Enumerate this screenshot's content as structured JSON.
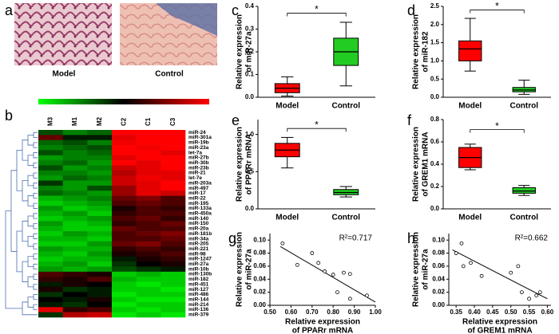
{
  "panel_a": {
    "label": "a",
    "images": [
      "Model",
      "Control"
    ]
  },
  "chart_data": [
    {
      "type": "heatmap",
      "panel": "b",
      "columns": [
        "M3",
        "M1",
        "M2",
        "C2",
        "C1",
        "C3"
      ],
      "rows": [
        "miR-24",
        "miR-301a",
        "miR-19b",
        "miR-23a",
        "let-7a",
        "miR-27b",
        "miR-30b",
        "miR-23b",
        "miR-21",
        "let-7e",
        "miR-203a",
        "miR-497",
        "miR-17",
        "miR-22",
        "miR-195",
        "miR-133a",
        "miR-450a",
        "miR-140",
        "miR-150",
        "miR-20a",
        "miR-181b",
        "miR-34a",
        "miR-205",
        "miR-221",
        "miR-98",
        "miR-1247",
        "miR-27a",
        "miR-10b",
        "miR-130b",
        "miR-182",
        "miR-451",
        "miR-127",
        "miR-486",
        "miR-144",
        "miR-214",
        "miR-136",
        "miR-379"
      ],
      "colors": [
        "#00ff00",
        "#000000",
        "#ff0000"
      ],
      "zlim": [
        -1,
        1
      ],
      "values": [
        [
          -0.3,
          -0.5,
          -0.4,
          1,
          1,
          1
        ],
        [
          0.4,
          -0.1,
          -0.1,
          0.9,
          1,
          1
        ],
        [
          -0.4,
          -0.3,
          -0.5,
          0.95,
          1,
          1
        ],
        [
          -0.5,
          -0.4,
          -0.3,
          1,
          0.95,
          1
        ],
        [
          -0.3,
          -0.5,
          -0.4,
          1,
          1,
          0.9
        ],
        [
          -0.6,
          -0.5,
          -0.5,
          0.9,
          1,
          1
        ],
        [
          -0.5,
          -0.4,
          -0.6,
          1,
          0.9,
          1
        ],
        [
          -0.3,
          -0.6,
          -0.5,
          0.8,
          0.9,
          1
        ],
        [
          -0.5,
          -0.5,
          -0.6,
          0.7,
          0.9,
          0.9
        ],
        [
          -0.6,
          -0.4,
          -0.5,
          0.8,
          0.95,
          0.9
        ],
        [
          -0.2,
          -0.6,
          -0.6,
          0.8,
          0.9,
          1
        ],
        [
          -0.5,
          -0.6,
          -0.3,
          0.6,
          0.9,
          1
        ],
        [
          -0.4,
          -0.5,
          -0.6,
          0.6,
          0.9,
          0.8
        ],
        [
          -0.7,
          -0.6,
          -0.5,
          0.4,
          0.5,
          0.3
        ],
        [
          -0.8,
          -0.7,
          -0.6,
          0.3,
          0.4,
          0.3
        ],
        [
          -0.6,
          -0.8,
          -0.7,
          0.1,
          0.3,
          0.2
        ],
        [
          -0.7,
          -0.6,
          -0.8,
          0.2,
          0.3,
          0.3
        ],
        [
          -0.8,
          -0.7,
          -0.6,
          0.3,
          0.4,
          0.2
        ],
        [
          -0.6,
          -0.8,
          -0.7,
          0.2,
          0.3,
          0.4
        ],
        [
          -0.7,
          -0.8,
          -0.8,
          0.4,
          0.3,
          0.3
        ],
        [
          -0.8,
          -0.6,
          -0.7,
          0.3,
          0.4,
          0.5
        ],
        [
          -0.7,
          -0.7,
          -0.8,
          0.3,
          0.3,
          0.4
        ],
        [
          -0.8,
          -0.8,
          -0.6,
          0.4,
          0.5,
          0.3
        ],
        [
          -0.6,
          -0.7,
          -0.7,
          0.2,
          0.3,
          0.2
        ],
        [
          -0.7,
          -0.8,
          -0.6,
          0.1,
          0.2,
          0.3
        ],
        [
          -0.8,
          -0.7,
          -0.7,
          -0.1,
          0.1,
          0.2
        ],
        [
          -0.7,
          -0.6,
          -0.8,
          -0.2,
          0.0,
          0.1
        ],
        [
          -0.6,
          -0.7,
          -0.6,
          -0.3,
          -0.2,
          -0.1
        ],
        [
          0.3,
          0.2,
          0.1,
          -0.8,
          -0.7,
          -0.8
        ],
        [
          0.2,
          0.1,
          0.3,
          -0.7,
          -0.8,
          -0.8
        ],
        [
          -0.1,
          0.1,
          0.0,
          -0.8,
          -0.9,
          -0.8
        ],
        [
          0.1,
          -0.2,
          -0.1,
          -0.8,
          -0.8,
          -0.9
        ],
        [
          -0.2,
          0.0,
          -0.1,
          -0.9,
          -0.8,
          -0.8
        ],
        [
          0.0,
          -0.1,
          0.1,
          -0.8,
          -0.9,
          -0.9
        ],
        [
          -0.1,
          -0.2,
          0.0,
          -0.9,
          -0.8,
          -0.8
        ],
        [
          0.9,
          0.2,
          0.3,
          -0.8,
          -0.9,
          -0.8
        ],
        [
          -0.2,
          0.7,
          0.8,
          -0.9,
          -0.8,
          -0.9
        ]
      ]
    },
    {
      "type": "box",
      "panel": "c",
      "ylabel": [
        "Relative expression",
        "of miR-27a"
      ],
      "categories": [
        "Model",
        "Control"
      ],
      "boxes": [
        {
          "color": "#ff0000",
          "min": 0.005,
          "q1": 0.02,
          "median": 0.04,
          "q3": 0.06,
          "max": 0.09
        },
        {
          "color": "#22cc22",
          "min": 0.05,
          "q1": 0.14,
          "median": 0.2,
          "q3": 0.26,
          "max": 0.33
        }
      ],
      "ylim": [
        0,
        0.4
      ],
      "yticks": [
        {
          "value": 0,
          "label": "0.0"
        },
        0.1,
        0.2,
        0.3,
        0.4
      ],
      "significance": {
        "label": "*",
        "y": 0.37
      }
    },
    {
      "type": "box",
      "panel": "d",
      "ylabel": [
        "Relative expression",
        "of miR-182"
      ],
      "categories": [
        "Model",
        "Control"
      ],
      "boxes": [
        {
          "color": "#ff0000",
          "min": 0.72,
          "q1": 1.0,
          "median": 1.33,
          "q3": 1.55,
          "max": 2.17
        },
        {
          "color": "#22cc22",
          "min": 0.08,
          "q1": 0.15,
          "median": 0.2,
          "q3": 0.27,
          "max": 0.47
        }
      ],
      "ylim": [
        0,
        2.5
      ],
      "yticks": [
        {
          "value": 0,
          "label": "0.0"
        },
        0.5,
        {
          "value": 1,
          "label": "1.0"
        },
        1.5,
        {
          "value": 2,
          "label": "2.0"
        },
        2.5
      ],
      "significance": {
        "label": "*",
        "y": 2.4
      }
    },
    {
      "type": "box",
      "panel": "e",
      "ylabel": [
        "Relative expression",
        "of PPARr mRNA"
      ],
      "categories": [
        "Model",
        "Control"
      ],
      "boxes": [
        {
          "color": "#ff0000",
          "min": 0.55,
          "q1": 0.7,
          "median": 0.79,
          "q3": 0.88,
          "max": 0.96
        },
        {
          "color": "#22cc22",
          "min": 0.16,
          "q1": 0.19,
          "median": 0.22,
          "q3": 0.26,
          "max": 0.3
        }
      ],
      "ylim": [
        0,
        1.2
      ],
      "yticks": [
        {
          "value": 0,
          "label": "0.0"
        },
        0.5,
        {
          "value": 1,
          "label": "1.0"
        }
      ],
      "significance": {
        "label": "*",
        "y": 1.08
      }
    },
    {
      "type": "box",
      "panel": "f",
      "ylabel": [
        "Relative expression",
        "of GREM1 mRNA"
      ],
      "categories": [
        "Model",
        "Control"
      ],
      "boxes": [
        {
          "color": "#ff0000",
          "min": 0.35,
          "q1": 0.37,
          "median": 0.46,
          "q3": 0.55,
          "max": 0.58
        },
        {
          "color": "#22cc22",
          "min": 0.12,
          "q1": 0.14,
          "median": 0.16,
          "q3": 0.19,
          "max": 0.21
        }
      ],
      "ylim": [
        0,
        0.8
      ],
      "yticks": [
        {
          "value": 0,
          "label": "0.0"
        },
        0.2,
        0.4,
        0.6,
        0.8
      ],
      "significance": {
        "label": "*",
        "y": 0.71
      }
    },
    {
      "type": "scatter",
      "panel": "g",
      "ylabel": [
        "Relative expression",
        "of miR-27a"
      ],
      "xlabel": [
        "Relative expression",
        "of PPARr mRNA"
      ],
      "x": [
        0.56,
        0.63,
        0.7,
        0.73,
        0.76,
        0.8,
        0.82,
        0.85,
        0.88,
        0.88,
        0.96
      ],
      "values": [
        0.095,
        0.062,
        0.08,
        0.065,
        0.052,
        0.047,
        0.02,
        0.05,
        0.048,
        0.01,
        0.015
      ],
      "fit": {
        "x": [
          0.55,
          1.0
        ],
        "y": [
          0.09,
          0.005
        ]
      },
      "annotation": "R²=0.717",
      "xlim": [
        0.5,
        1.0
      ],
      "xticks": [
        {
          "value": 0.5,
          "label": "0.50"
        },
        {
          "value": 0.6,
          "label": "0.60"
        },
        {
          "value": 0.7,
          "label": "0.70"
        },
        {
          "value": 0.8,
          "label": "0.80"
        },
        {
          "value": 0.9,
          "label": "0.90"
        },
        {
          "value": 1,
          "label": "1.00"
        }
      ],
      "ylim": [
        0,
        0.11
      ],
      "yticks": [
        {
          "value": 0,
          "label": "0.00"
        },
        0.02,
        0.04,
        0.06,
        0.08,
        {
          "value": 0.1,
          "label": "0.10"
        }
      ]
    },
    {
      "type": "scatter",
      "panel": "h",
      "ylabel": [
        "Relative expression",
        "of miR-27a"
      ],
      "xlabel": [
        "Relative expression",
        "of GREM1 mRNA"
      ],
      "x": [
        0.35,
        0.365,
        0.37,
        0.39,
        0.42,
        0.5,
        0.52,
        0.53,
        0.55,
        0.57,
        0.58
      ],
      "values": [
        0.08,
        0.095,
        0.06,
        0.065,
        0.045,
        0.05,
        0.06,
        0.02,
        0.01,
        0.015,
        0.02
      ],
      "fit": {
        "x": [
          0.34,
          0.6
        ],
        "y": [
          0.085,
          0.01
        ]
      },
      "annotation": "R²=0.662",
      "xlim": [
        0.33,
        0.61
      ],
      "xticks": [
        0.35,
        {
          "value": 0.4,
          "label": "0.40"
        },
        0.45,
        {
          "value": 0.5,
          "label": "0.50"
        },
        0.55,
        {
          "value": 0.6,
          "label": "0.60"
        }
      ],
      "ylim": [
        0,
        0.11
      ],
      "yticks": [
        {
          "value": 0,
          "label": "0.00"
        },
        0.02,
        0.04,
        0.06,
        0.08,
        {
          "value": 0.1,
          "label": "0.10"
        }
      ]
    }
  ]
}
